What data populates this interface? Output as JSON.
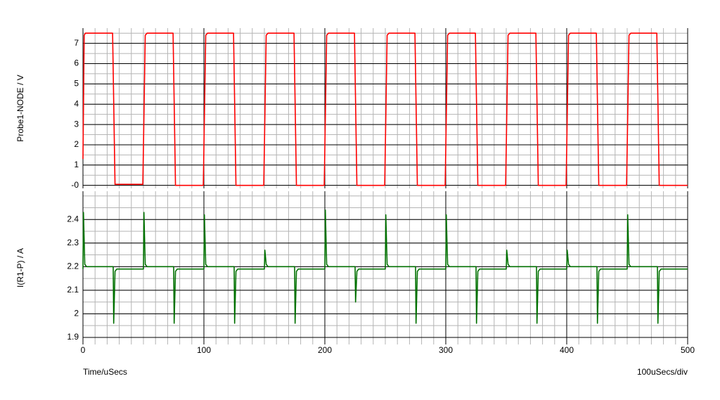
{
  "chart_data": [
    {
      "type": "line",
      "ylabel": "Probe1-NODE / V",
      "xlim": [
        0,
        500
      ],
      "xticks": [
        0,
        100,
        200,
        300,
        400,
        500
      ],
      "ylim": [
        -0.15,
        7.75
      ],
      "yticks": [
        {
          "value": 0,
          "label": "-0"
        },
        1,
        2,
        3,
        4,
        5,
        6,
        7
      ],
      "grid": true,
      "minor_divisions_x": 10,
      "minor_divisions_y": 2,
      "series": [
        {
          "color": "#ff0000",
          "x": [
            0,
            1,
            2,
            24.5,
            26.5,
            49.5,
            51.5,
            53,
            74.5,
            76.5,
            99.5,
            101.5,
            103,
            124.5,
            126.5,
            149.5,
            151.5,
            153,
            174.5,
            176.5,
            199.5,
            201.5,
            203,
            224.5,
            226.5,
            249.5,
            251.5,
            253,
            274.5,
            276.5,
            299.5,
            301.5,
            303,
            324.5,
            326.5,
            349.5,
            351.5,
            353,
            374.5,
            376.5,
            399.5,
            401.5,
            403,
            424.5,
            426.5,
            449.5,
            451.5,
            453,
            474.5,
            476.5,
            500
          ],
          "values": [
            1.3,
            7.4,
            7.5,
            7.5,
            0.05,
            0.05,
            7.4,
            7.5,
            7.5,
            0,
            0,
            7.4,
            7.5,
            7.5,
            0,
            0,
            7.4,
            7.5,
            7.5,
            0,
            0,
            7.4,
            7.5,
            7.5,
            0,
            0,
            7.4,
            7.5,
            7.5,
            0,
            0,
            7.4,
            7.5,
            7.5,
            0,
            0,
            7.4,
            7.5,
            7.5,
            0,
            0,
            7.4,
            7.5,
            7.5,
            0,
            0,
            7.4,
            7.5,
            7.5,
            0,
            0
          ]
        }
      ]
    },
    {
      "type": "line",
      "ylabel": "I(R1-P) / A",
      "xlabel": "Time/uSecs",
      "annotation": "100uSecs/div",
      "xlim": [
        0,
        500
      ],
      "xticks": [
        0,
        100,
        200,
        300,
        400,
        500
      ],
      "ylim": [
        1.87,
        2.52
      ],
      "yticks": [
        1.9,
        2,
        2.1,
        2.2,
        2.3,
        2.4
      ],
      "grid": true,
      "minor_divisions_x": 10,
      "minor_divisions_y": 2,
      "series": [
        {
          "color": "#007000",
          "x": [
            0,
            0.4,
            1.5,
            3,
            25,
            25.4,
            26.5,
            28,
            50,
            50.4,
            51.5,
            53,
            75,
            75.4,
            76.5,
            78,
            100,
            100.4,
            101.5,
            103,
            125,
            125.4,
            126.5,
            128,
            150,
            150.4,
            151.5,
            153,
            175,
            175.4,
            176.5,
            178,
            200,
            200.4,
            201.5,
            203,
            225,
            225.4,
            226.5,
            228,
            250,
            250.4,
            251.5,
            253,
            275,
            275.4,
            276.5,
            278,
            300,
            300.4,
            301.5,
            303,
            325,
            325.4,
            326.5,
            328,
            350,
            350.4,
            351.5,
            353,
            375,
            375.4,
            376.5,
            378,
            400,
            400.4,
            401.5,
            403,
            425,
            425.4,
            426.5,
            428,
            450,
            450.4,
            451.5,
            453,
            475,
            475.4,
            476.5,
            478,
            500
          ],
          "values": [
            2.19,
            2.43,
            2.21,
            2.2,
            2.2,
            1.96,
            2.18,
            2.19,
            2.19,
            2.43,
            2.21,
            2.2,
            2.2,
            1.96,
            2.18,
            2.19,
            2.19,
            2.42,
            2.21,
            2.2,
            2.2,
            1.96,
            2.18,
            2.19,
            2.19,
            2.27,
            2.21,
            2.2,
            2.2,
            1.96,
            2.18,
            2.19,
            2.19,
            2.44,
            2.21,
            2.2,
            2.2,
            2.05,
            2.18,
            2.19,
            2.19,
            2.42,
            2.21,
            2.2,
            2.2,
            1.96,
            2.18,
            2.19,
            2.19,
            2.42,
            2.21,
            2.2,
            2.2,
            1.96,
            2.18,
            2.19,
            2.19,
            2.27,
            2.21,
            2.2,
            2.2,
            1.96,
            2.18,
            2.19,
            2.19,
            2.27,
            2.21,
            2.2,
            2.2,
            1.96,
            2.18,
            2.19,
            2.19,
            2.42,
            2.21,
            2.2,
            2.2,
            1.96,
            2.18,
            2.19,
            2.19
          ]
        }
      ]
    }
  ]
}
